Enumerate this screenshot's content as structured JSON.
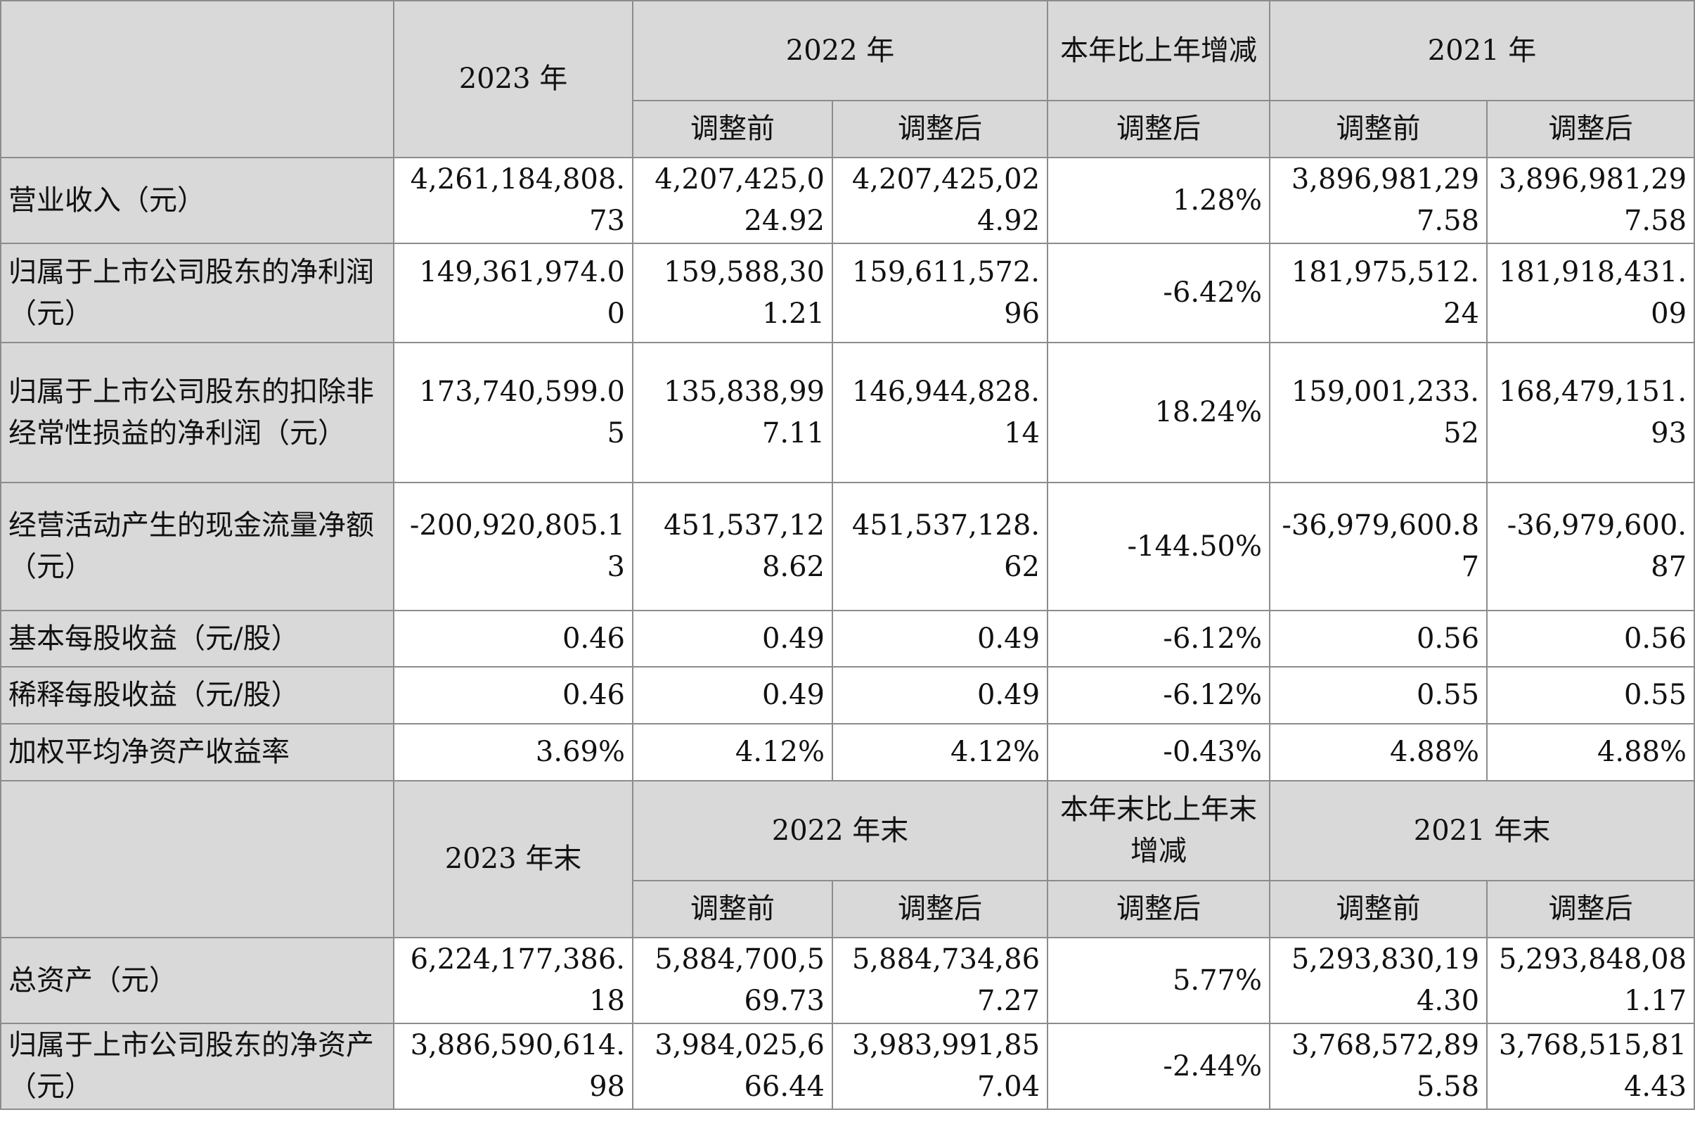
{
  "section1": {
    "year_current": "2023 年",
    "year_prev": "2022 年",
    "change_label": "本年比上年增减",
    "year_prev2": "2021 年",
    "before_adj": "调整前",
    "after_adj": "调整后",
    "rows": [
      {
        "label": "营业收入（元）",
        "v2023": "4,261,184,808.73",
        "v2022b": "4,207,425,024.92",
        "v2022a": "4,207,425,024.92",
        "chg": "1.28%",
        "v2021b": "3,896,981,297.58",
        "v2021a": "3,896,981,297.58"
      },
      {
        "label": "归属于上市公司股东的净利润（元）",
        "v2023": "149,361,974.00",
        "v2022b": "159,588,301.21",
        "v2022a": "159,611,572.96",
        "chg": "-6.42%",
        "v2021b": "181,975,512.24",
        "v2021a": "181,918,431.09"
      },
      {
        "label": "归属于上市公司股东的扣除非经常性损益的净利润（元）",
        "v2023": "173,740,599.05",
        "v2022b": "135,838,997.11",
        "v2022a": "146,944,828.14",
        "chg": "18.24%",
        "v2021b": "159,001,233.52",
        "v2021a": "168,479,151.93"
      },
      {
        "label": "经营活动产生的现金流量净额（元）",
        "v2023": "-200,920,805.13",
        "v2022b": "451,537,128.62",
        "v2022a": "451,537,128.62",
        "chg": "-144.50%",
        "v2021b": "-36,979,600.87",
        "v2021a": "-36,979,600.87"
      },
      {
        "label": "基本每股收益（元/股）",
        "v2023": "0.46",
        "v2022b": "0.49",
        "v2022a": "0.49",
        "chg": "-6.12%",
        "v2021b": "0.56",
        "v2021a": "0.56"
      },
      {
        "label": "稀释每股收益（元/股）",
        "v2023": "0.46",
        "v2022b": "0.49",
        "v2022a": "0.49",
        "chg": "-6.12%",
        "v2021b": "0.55",
        "v2021a": "0.55"
      },
      {
        "label": "加权平均净资产收益率",
        "v2023": "3.69%",
        "v2022b": "4.12%",
        "v2022a": "4.12%",
        "chg": "-0.43%",
        "v2021b": "4.88%",
        "v2021a": "4.88%"
      }
    ]
  },
  "section2": {
    "year_current": "2023 年末",
    "year_prev": "2022 年末",
    "change_label": "本年末比上年末增减",
    "year_prev2": "2021 年末",
    "before_adj": "调整前",
    "after_adj": "调整后",
    "rows": [
      {
        "label": "总资产（元）",
        "v2023": "6,224,177,386.18",
        "v2022b": "5,884,700,569.73",
        "v2022a": "5,884,734,867.27",
        "chg": "5.77%",
        "v2021b": "5,293,830,194.30",
        "v2021a": "5,293,848,081.17"
      },
      {
        "label": "归属于上市公司股东的净资产（元）",
        "v2023": "3,886,590,614.98",
        "v2022b": "3,984,025,666.44",
        "v2022a": "3,983,991,857.04",
        "chg": "-2.44%",
        "v2021b": "3,768,572,895.58",
        "v2021a": "3,768,515,814.43"
      }
    ]
  }
}
